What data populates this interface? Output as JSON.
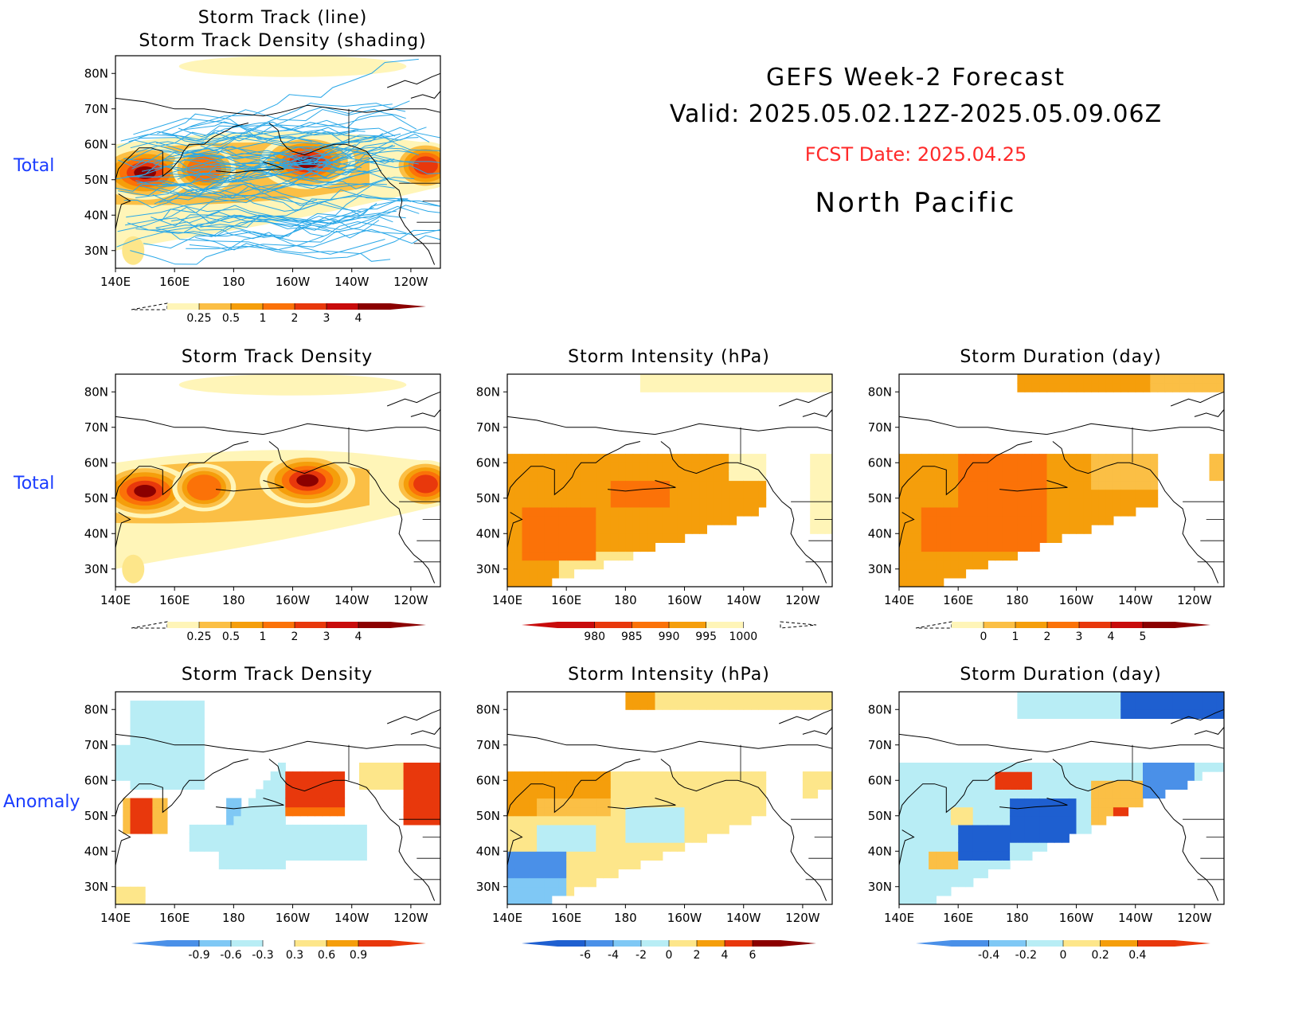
{
  "header": {
    "title": "GEFS Week-2 Forecast",
    "valid": "Valid: 2025.05.02.12Z-2025.05.09.06Z",
    "fcst_date": "FCST Date: 2025.04.25",
    "region": "North Pacific"
  },
  "row_labels": [
    "Total",
    "Total",
    "Anomaly"
  ],
  "colors": {
    "tracks": "#2aa8e8",
    "warm": [
      "#fff5b8",
      "#fde68a",
      "#fbbf45",
      "#f59e0b",
      "#fb7208",
      "#e8380c",
      "#c80b0b",
      "#8b0000"
    ],
    "cool": [
      "#b8edf5",
      "#7fc8f5",
      "#4a90e8",
      "#1e5fd0",
      "#0b3aa0"
    ]
  },
  "axes": {
    "x_ticks": [
      "140E",
      "160E",
      "180",
      "160W",
      "140W",
      "120W"
    ],
    "y_ticks": [
      "80N",
      "70N",
      "60N",
      "50N",
      "40N",
      "30N"
    ]
  },
  "chart_data": [
    {
      "id": "track-total",
      "type": "heatmap",
      "title": "Storm Track (line)",
      "subtitle": "Storm Track Density (shading)",
      "xlim": [
        140,
        250
      ],
      "ylim": [
        25,
        85
      ],
      "blobs": [
        {
          "lon": 150,
          "lat": 52,
          "peak": 4
        },
        {
          "lon": 170,
          "lat": 53,
          "peak": 2.5
        },
        {
          "lon": 205,
          "lat": 55,
          "peak": 4.5
        },
        {
          "lon": 245,
          "lat": 54,
          "peak": 3
        }
      ],
      "colorbar": {
        "labels": [
          "0.25",
          "0.5",
          "1",
          "2",
          "3",
          "4"
        ]
      }
    },
    {
      "id": "density-total",
      "type": "heatmap",
      "title": "Storm Track Density",
      "xlim": [
        140,
        250
      ],
      "ylim": [
        25,
        85
      ],
      "blobs": [
        {
          "lon": 150,
          "lat": 52,
          "peak": 4
        },
        {
          "lon": 170,
          "lat": 53,
          "peak": 2.5
        },
        {
          "lon": 205,
          "lat": 55,
          "peak": 4.5
        },
        {
          "lon": 245,
          "lat": 54,
          "peak": 3
        }
      ],
      "colorbar": {
        "labels": [
          "0.25",
          "0.5",
          "1",
          "2",
          "3",
          "4"
        ]
      }
    },
    {
      "id": "intensity-total",
      "type": "heatmap",
      "title": "Storm Intensity (hPa)",
      "xlim": [
        140,
        250
      ],
      "ylim": [
        25,
        85
      ],
      "colorbar": {
        "labels": [
          "980",
          "985",
          "990",
          "995",
          "1000"
        ]
      }
    },
    {
      "id": "duration-total",
      "type": "heatmap",
      "title": "Storm Duration (day)",
      "xlim": [
        140,
        250
      ],
      "ylim": [
        25,
        85
      ],
      "colorbar": {
        "labels": [
          "0",
          "1",
          "2",
          "3",
          "4",
          "5"
        ]
      }
    },
    {
      "id": "density-anomaly",
      "type": "heatmap",
      "title": "Storm Track Density",
      "xlim": [
        140,
        250
      ],
      "ylim": [
        25,
        85
      ],
      "colorbar": {
        "labels": [
          "-0.9",
          "-0.6",
          "-0.3",
          "0.3",
          "0.6",
          "0.9"
        ]
      }
    },
    {
      "id": "intensity-anomaly",
      "type": "heatmap",
      "title": "Storm Intensity (hPa)",
      "xlim": [
        140,
        250
      ],
      "ylim": [
        25,
        85
      ],
      "colorbar": {
        "labels": [
          "-6",
          "-4",
          "-2",
          "0",
          "2",
          "4",
          "6"
        ]
      }
    },
    {
      "id": "duration-anomaly",
      "type": "heatmap",
      "title": "Storm Duration (day)",
      "xlim": [
        140,
        250
      ],
      "ylim": [
        25,
        85
      ],
      "colorbar": {
        "labels": [
          "-0.4",
          "-0.2",
          "0",
          "0.2",
          "0.4"
        ]
      }
    }
  ]
}
